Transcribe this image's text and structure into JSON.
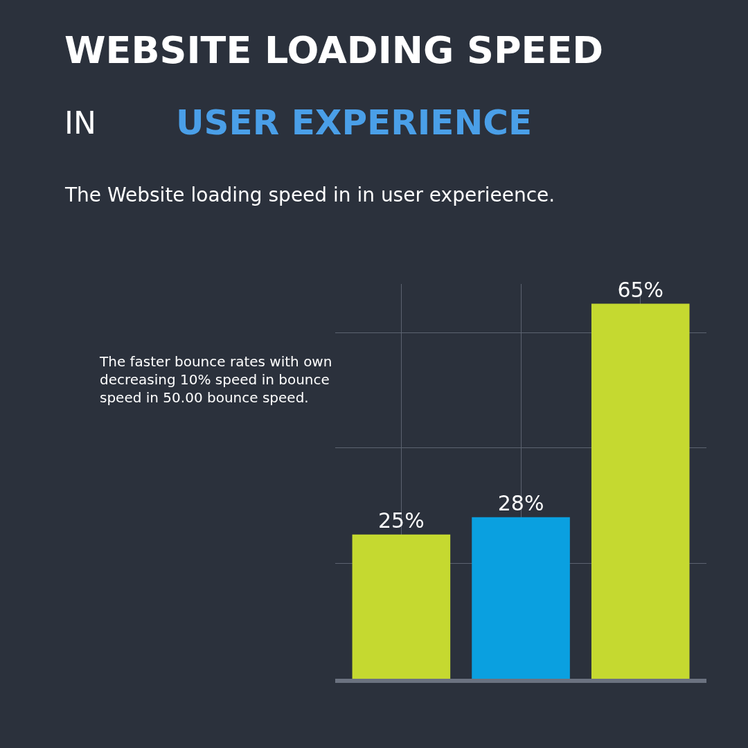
{
  "chart_data": {
    "type": "bar",
    "title": "WEBSITE LOADING SPEED",
    "subtitle": "The Website loading speed in in user experieence.",
    "annotations": [
      "IN",
      "USER EXPERIENCE",
      "The faster bounce rates with own decreasing 10% speed in bounce speed in 50.00 bounce speed."
    ],
    "categories": [
      null,
      null,
      null
    ],
    "values": [
      25,
      28,
      65
    ],
    "colors": [
      "#c5d930",
      "#0aa0e0",
      "#c5d930"
    ],
    "value_labels": [
      "25%",
      "28%",
      "65%"
    ],
    "grid": true,
    "tick_labels": false
  }
}
